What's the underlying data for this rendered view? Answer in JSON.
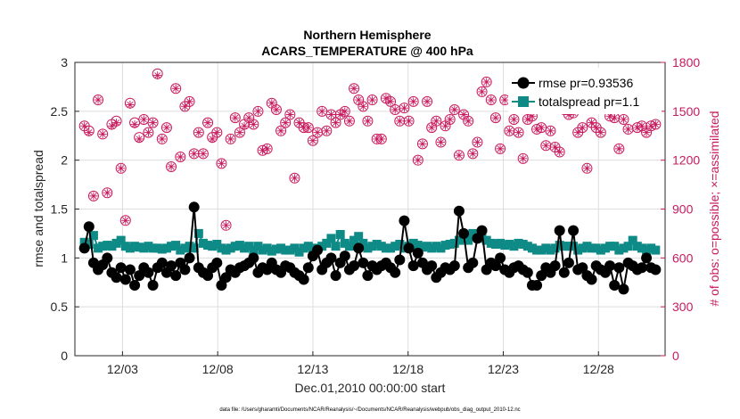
{
  "chart_data": {
    "type": "line",
    "title": "Northern Hemisphere",
    "subtitle": "ACARS_TEMPERATURE @ 400 hPa",
    "xlabel": "Dec.01,2010 00:00:00 start",
    "ylabel_left": "rmse and totalspread",
    "ylabel_right": "# of obs: o=possible; ×=assimilated",
    "footnote": "data file: /Users/gharamti/Documents/NCAR/Reanalysis/~/Documents/NCAR/Reanalysis/webpub/obs_diag_output_2010-12.nc",
    "x_range": [
      0.5,
      31.5
    ],
    "x_ticks": [
      3,
      8,
      13,
      18,
      23,
      28
    ],
    "x_tick_labels": [
      "12/03",
      "12/08",
      "12/13",
      "12/18",
      "12/23",
      "12/28"
    ],
    "ylim_left": [
      0,
      3
    ],
    "y_ticks_left": [
      "0",
      "0.5",
      "1",
      "1.5",
      "2",
      "2.5",
      "3"
    ],
    "ylim_right": [
      0,
      1800
    ],
    "y_ticks_right": [
      "0",
      "300",
      "600",
      "900",
      "1200",
      "1500",
      "1800"
    ],
    "grid": true,
    "legend_position": "top-right",
    "colors": {
      "rmse": "#000000",
      "spread": "#0e8a87",
      "obs": "#c81a5e",
      "grid": "#dddddd"
    },
    "series": [
      {
        "name": "rmse pr=0.93536",
        "axis": "left",
        "values": [
          1.1,
          1.32,
          0.95,
          0.88,
          0.93,
          1.0,
          0.85,
          0.8,
          0.9,
          0.78,
          0.88,
          0.72,
          0.82,
          0.9,
          0.85,
          0.72,
          0.9,
          0.95,
          0.85,
          0.92,
          0.82,
          0.95,
          0.88,
          1.0,
          1.52,
          0.9,
          0.85,
          0.82,
          0.9,
          0.95,
          0.72,
          0.8,
          0.88,
          0.85,
          0.9,
          0.92,
          0.95,
          1.0,
          0.85,
          0.9,
          0.88,
          0.95,
          0.88,
          0.85,
          0.92,
          0.9,
          0.85,
          0.82,
          0.78,
          0.9,
          1.02,
          1.08,
          0.88,
          0.95,
          1.0,
          0.82,
          0.95,
          1.02,
          0.88,
          0.92,
          1.1,
          0.95,
          0.82,
          0.92,
          0.88,
          0.92,
          0.95,
          0.9,
          0.85,
          0.98,
          1.38,
          1.1,
          0.92,
          1.05,
          0.95,
          0.88,
          0.92,
          0.8,
          0.85,
          0.9,
          0.88,
          0.92,
          1.48,
          1.25,
          0.9,
          0.95,
          1.2,
          1.28,
          0.88,
          0.95,
          0.92,
          1.0,
          0.88,
          0.85,
          0.9,
          0.92,
          0.88,
          0.85,
          0.72,
          0.72,
          0.82,
          0.9,
          0.85,
          0.92,
          1.28,
          0.85,
          0.95,
          1.28,
          0.88,
          0.9,
          0.82,
          0.78,
          0.92,
          0.88,
          0.85,
          0.92,
          0.72,
          0.9,
          0.68,
          0.95,
          0.92,
          0.88,
          0.9,
          1.0,
          0.9,
          0.88
        ]
      },
      {
        "name": "totalspread pr=1.1",
        "axis": "left",
        "values": [
          1.16,
          1.14,
          1.23,
          1.1,
          1.12,
          1.13,
          1.12,
          1.15,
          1.18,
          1.12,
          1.1,
          1.12,
          1.11,
          1.1,
          1.12,
          1.1,
          1.1,
          1.09,
          1.1,
          1.12,
          1.13,
          1.08,
          1.1,
          1.12,
          1.1,
          1.25,
          1.15,
          1.13,
          1.12,
          1.14,
          1.1,
          1.08,
          1.1,
          1.12,
          1.13,
          1.1,
          1.12,
          1.08,
          1.12,
          1.08,
          1.1,
          1.07,
          1.09,
          1.1,
          1.08,
          1.08,
          1.1,
          1.06,
          1.1,
          1.12,
          1.1,
          1.09,
          1.12,
          1.15,
          1.2,
          1.12,
          1.24,
          1.15,
          1.12,
          1.18,
          1.22,
          1.15,
          1.1,
          1.12,
          1.14,
          1.12,
          1.1,
          1.1,
          1.12,
          1.14,
          1.1,
          1.12,
          1.15,
          1.13,
          1.11,
          1.12,
          1.1,
          1.12,
          1.1,
          1.13,
          1.14,
          1.15,
          1.18,
          1.2,
          1.18,
          1.25,
          1.22,
          1.2,
          1.18,
          1.15,
          1.14,
          1.15,
          1.13,
          1.14,
          1.12,
          1.15,
          1.14,
          1.12,
          1.1,
          1.08,
          1.08,
          1.1,
          1.08,
          1.1,
          1.13,
          1.12,
          1.12,
          1.12,
          1.08,
          1.1,
          1.12,
          1.1,
          1.1,
          1.08,
          1.1,
          1.12,
          1.12,
          1.08,
          1.1,
          1.12,
          1.18,
          1.12,
          1.1,
          1.08,
          1.1,
          1.08
        ]
      },
      {
        "name": "# of obs possible",
        "axis": "right",
        "values": [
          1410,
          1380,
          980,
          1570,
          1360,
          1000,
          1420,
          1440,
          1150,
          830,
          1550,
          1430,
          1340,
          1450,
          1370,
          1430,
          1730,
          1330,
          1400,
          1160,
          1640,
          1220,
          1530,
          1560,
          1240,
          1370,
          1240,
          1430,
          1340,
          1370,
          1180,
          800,
          1330,
          1460,
          1370,
          1420,
          1460,
          1420,
          1500,
          1260,
          1270,
          1550,
          1510,
          1380,
          1430,
          1480,
          1090,
          1430,
          1400,
          1400,
          1320,
          1370,
          1500,
          1380,
          1480,
          1430,
          1480,
          1500,
          1440,
          1640,
          1570,
          1530,
          1440,
          1570,
          1330,
          1330,
          1580,
          1560,
          1510,
          1440,
          1520,
          1440,
          1560,
          1200,
          1300,
          1560,
          1400,
          1440,
          1310,
          1410,
          1450,
          1510,
          1230,
          1480,
          1440,
          1240,
          1310,
          1620,
          1680,
          1570,
          1460,
          1270,
          1570,
          1380,
          1450,
          1370,
          1210,
          1450,
          1470,
          1390,
          1400,
          1290,
          1380,
          1280,
          1250,
          1510,
          1480,
          1490,
          1370,
          1400,
          1150,
          1430,
          1400,
          1370,
          1620,
          1470,
          1460,
          1270,
          1450,
          1390,
          1570,
          1400,
          1410,
          1370,
          1410,
          1420
        ]
      },
      {
        "name": "# of obs assimilated",
        "axis": "right",
        "values": [
          1410,
          1370,
          980,
          1570,
          1360,
          1000,
          1410,
          1430,
          1150,
          830,
          1540,
          1420,
          1330,
          1450,
          1370,
          1430,
          1720,
          1330,
          1400,
          1160,
          1640,
          1220,
          1530,
          1560,
          1240,
          1370,
          1240,
          1430,
          1330,
          1370,
          1180,
          800,
          1330,
          1460,
          1370,
          1410,
          1460,
          1420,
          1500,
          1260,
          1270,
          1550,
          1510,
          1380,
          1430,
          1480,
          1090,
          1430,
          1400,
          1400,
          1320,
          1370,
          1500,
          1380,
          1480,
          1430,
          1480,
          1500,
          1440,
          1640,
          1570,
          1530,
          1440,
          1570,
          1330,
          1330,
          1580,
          1560,
          1510,
          1440,
          1520,
          1440,
          1560,
          1200,
          1300,
          1560,
          1400,
          1440,
          1310,
          1410,
          1450,
          1510,
          1230,
          1480,
          1440,
          1240,
          1310,
          1620,
          1680,
          1570,
          1460,
          1270,
          1570,
          1380,
          1450,
          1370,
          1210,
          1450,
          1470,
          1390,
          1400,
          1290,
          1380,
          1280,
          1250,
          1510,
          1480,
          1490,
          1370,
          1400,
          1150,
          1430,
          1400,
          1370,
          1620,
          1470,
          1460,
          1270,
          1450,
          1390,
          1570,
          1400,
          1410,
          1370,
          1410,
          1420
        ]
      }
    ]
  }
}
